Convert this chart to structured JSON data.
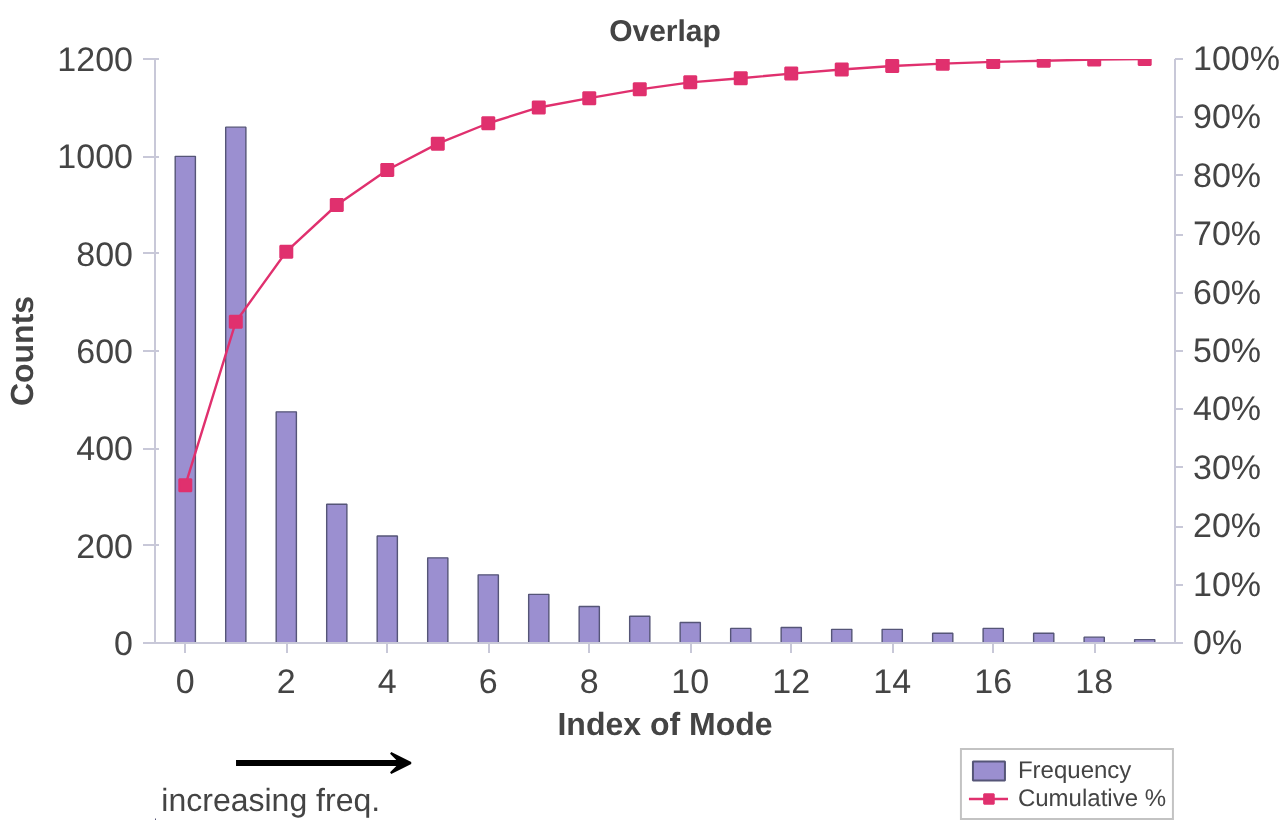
{
  "chart_data": {
    "type": "bar",
    "title": "Overlap",
    "xlabel": "Index of Mode",
    "ylabel": "Counts",
    "x": [
      0,
      1,
      2,
      3,
      4,
      5,
      6,
      7,
      8,
      9,
      10,
      11,
      12,
      13,
      14,
      15,
      16,
      17,
      18,
      19
    ],
    "xlim": [
      -0.6,
      19.6
    ],
    "xticks": [
      0,
      2,
      4,
      6,
      8,
      10,
      12,
      14,
      16,
      18
    ],
    "ylim": [
      0,
      1200
    ],
    "yticks": [
      0,
      200,
      400,
      600,
      800,
      1000,
      1200
    ],
    "y2lim": [
      0,
      100
    ],
    "y2ticks": [
      {
        "value": 0,
        "label": "0%"
      },
      {
        "value": 10,
        "label": "10%"
      },
      {
        "value": 20,
        "label": "20%"
      },
      {
        "value": 30,
        "label": "30%"
      },
      {
        "value": 40,
        "label": "40%"
      },
      {
        "value": 50,
        "label": "50%"
      },
      {
        "value": 60,
        "label": "60%"
      },
      {
        "value": 70,
        "label": "70%"
      },
      {
        "value": 80,
        "label": "80%"
      },
      {
        "value": 90,
        "label": "90%"
      },
      {
        "value": 100,
        "label": "100%"
      }
    ],
    "series": [
      {
        "name": "Frequency",
        "color": "#9b8fd0",
        "values": [
          1000,
          1060,
          475,
          285,
          220,
          175,
          140,
          100,
          75,
          55,
          42,
          30,
          32,
          28,
          28,
          20,
          30,
          20,
          12,
          7
        ]
      },
      {
        "name": "Cumulative %",
        "type": "line",
        "axis": "y2",
        "marker": "square",
        "color": "#e0306e",
        "values": [
          27,
          55,
          67,
          75,
          81,
          85.5,
          89,
          91.7,
          93.3,
          94.8,
          96,
          96.7,
          97.5,
          98.2,
          98.8,
          99.2,
          99.5,
          99.7,
          99.9,
          100
        ]
      }
    ],
    "annotations": [
      "increasing freq."
    ],
    "grid": false,
    "legend": "bottom right"
  }
}
